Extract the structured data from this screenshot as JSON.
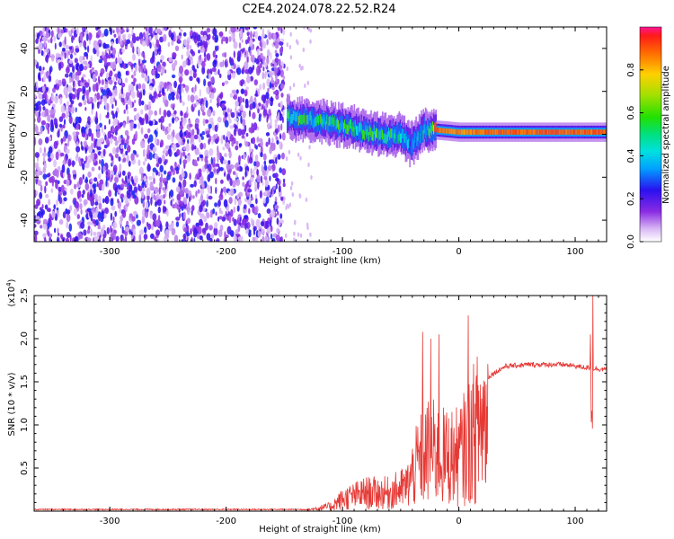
{
  "title": "C2E4.2024.078.22.52.R24",
  "chart_data": [
    {
      "type": "heatmap",
      "xlabel": "Height of straight line (km)",
      "ylabel": "Frequency (Hz)",
      "xlim": [
        -365,
        127
      ],
      "ylim": [
        -50,
        50
      ],
      "x_ticks": [
        -300,
        -200,
        -100,
        0,
        100
      ],
      "y_ticks": [
        -40,
        -20,
        0,
        20,
        40
      ],
      "noise_region_x": [
        -365,
        -150
      ],
      "ridge": [
        {
          "x": -148,
          "y": 8,
          "amp": 0.55
        },
        {
          "x": -140,
          "y": 7,
          "amp": 0.6
        },
        {
          "x": -130,
          "y": 7,
          "amp": 0.55
        },
        {
          "x": -120,
          "y": 6,
          "amp": 0.6
        },
        {
          "x": -110,
          "y": 5,
          "amp": 0.55
        },
        {
          "x": -100,
          "y": 4,
          "amp": 0.6
        },
        {
          "x": -90,
          "y": 3,
          "amp": 0.55
        },
        {
          "x": -80,
          "y": 1,
          "amp": 0.55
        },
        {
          "x": -70,
          "y": 0,
          "amp": 0.6
        },
        {
          "x": -60,
          "y": -1,
          "amp": 0.6
        },
        {
          "x": -50,
          "y": 0,
          "amp": 0.5
        },
        {
          "x": -42,
          "y": -5,
          "amp": 0.35
        },
        {
          "x": -30,
          "y": 2,
          "amp": 0.5
        },
        {
          "x": -20,
          "y": 2,
          "amp": 0.9
        },
        {
          "x": 0,
          "y": 1,
          "amp": 0.85
        },
        {
          "x": 30,
          "y": 1,
          "amp": 0.9
        },
        {
          "x": 60,
          "y": 1,
          "amp": 0.9
        },
        {
          "x": 90,
          "y": 1,
          "amp": 0.9
        },
        {
          "x": 127,
          "y": 1,
          "amp": 0.9
        }
      ],
      "colorbar": {
        "label": "Normalized spectral amplitude",
        "ticks": [
          0.0,
          0.2,
          0.4,
          0.6,
          0.8
        ],
        "range": [
          0,
          1
        ]
      }
    },
    {
      "type": "line",
      "xlabel": "Height of straight line (km)",
      "ylabel": "SNR (10 * v/v)",
      "multiplier_label": "(x10",
      "multiplier_exp": "4",
      "multiplier_close": ")",
      "xlim": [
        -365,
        127
      ],
      "ylim": [
        0,
        2.5
      ],
      "x_ticks": [
        -300,
        -200,
        -100,
        0,
        100
      ],
      "y_ticks": [
        0.5,
        1.0,
        1.5,
        2.0,
        2.5
      ],
      "color": "#e53935",
      "envelope": [
        {
          "x": -365,
          "y": 0.02
        },
        {
          "x": -130,
          "y": 0.02
        },
        {
          "x": -110,
          "y": 0.08
        },
        {
          "x": -100,
          "y": 0.2
        },
        {
          "x": -80,
          "y": 0.3
        },
        {
          "x": -60,
          "y": 0.3
        },
        {
          "x": -45,
          "y": 0.4
        },
        {
          "x": -35,
          "y": 0.8
        },
        {
          "x": -25,
          "y": 1.0
        },
        {
          "x": -15,
          "y": 0.9
        },
        {
          "x": 0,
          "y": 0.9
        },
        {
          "x": 10,
          "y": 1.2
        },
        {
          "x": 20,
          "y": 1.5
        },
        {
          "x": 30,
          "y": 1.6
        },
        {
          "x": 40,
          "y": 1.68
        },
        {
          "x": 60,
          "y": 1.7
        },
        {
          "x": 90,
          "y": 1.7
        },
        {
          "x": 112,
          "y": 1.66
        },
        {
          "x": 127,
          "y": 1.64
        }
      ],
      "peaks": [
        {
          "x": -31,
          "y": 2.08
        },
        {
          "x": -24,
          "y": 2.0
        },
        {
          "x": -17,
          "y": 2.05
        },
        {
          "x": 8,
          "y": 2.27
        },
        {
          "x": 113,
          "y": 2.05
        },
        {
          "x": 115,
          "y": 2.5
        }
      ]
    }
  ]
}
